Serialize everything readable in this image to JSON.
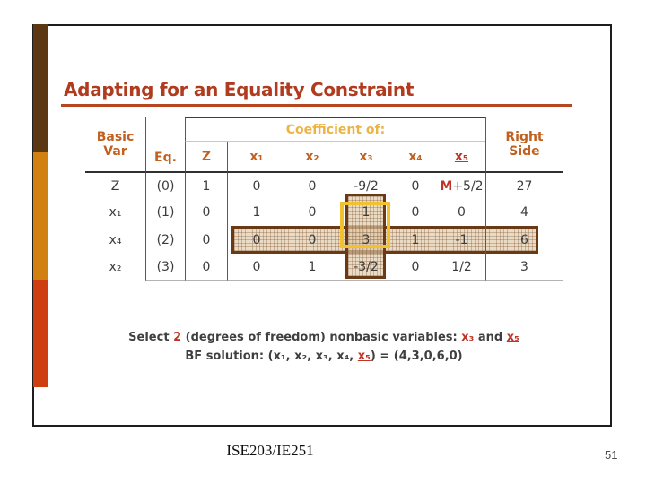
{
  "slide": {
    "title": "Adapting for an Equality Constraint",
    "footer_course": "ISE203/IE251",
    "page_number": "51"
  },
  "table": {
    "header": {
      "basic_var": "Basic\nVar",
      "eq": "Eq.",
      "coefficient_of": "Coefficient of:",
      "right_side": "Right\nSide",
      "columns": [
        "Z",
        "x₁",
        "x₂",
        "x₃",
        "x₄",
        "x₅"
      ]
    },
    "rows": [
      {
        "basic_var": "Z",
        "eq": "(0)",
        "z": "1",
        "x1": "0",
        "x2": "0",
        "x3": "-9/2",
        "x4": "0",
        "x5_m": "M",
        "x5_rest": "+5/2",
        "rhs": "27"
      },
      {
        "basic_var": "x₁",
        "eq": "(1)",
        "z": "0",
        "x1": "1",
        "x2": "0",
        "x3": "1",
        "x4": "0",
        "x5": "0",
        "rhs": "4"
      },
      {
        "basic_var": "x₄",
        "eq": "(2)",
        "z": "0",
        "x1": "0",
        "x2": "0",
        "x3": "3",
        "x4": "1",
        "x5": "-1",
        "rhs": "6"
      },
      {
        "basic_var": "x₂",
        "eq": "(3)",
        "z": "0",
        "x1": "0",
        "x2": "1",
        "x3": "-3/2",
        "x4": "0",
        "x5": "1/2",
        "rhs": "3"
      }
    ]
  },
  "note": {
    "line1": {
      "s1": "Select ",
      "s2": "2",
      "s3": " (degrees of freedom) nonbasic variables: ",
      "s4": "x₃",
      "s5": " and ",
      "s6": "x₅"
    },
    "line2": {
      "s1": "BF solution: (x₁, x₂, x₃, x₄, ",
      "s2": "x₅",
      "s3": ") = (4,3,0,6,0)"
    }
  },
  "colors": {
    "title": "#B03B1E",
    "header_orange": "#C2601F",
    "coefficient_gold": "#EDB445",
    "accent_red": "#C13327",
    "sidebar_brown": "#5B3813",
    "sidebar_orange": "#D0810F",
    "sidebar_red": "#CF3E11",
    "highlight_yellow": "#F1C12F",
    "band_border_brown": "#6A3A16"
  }
}
